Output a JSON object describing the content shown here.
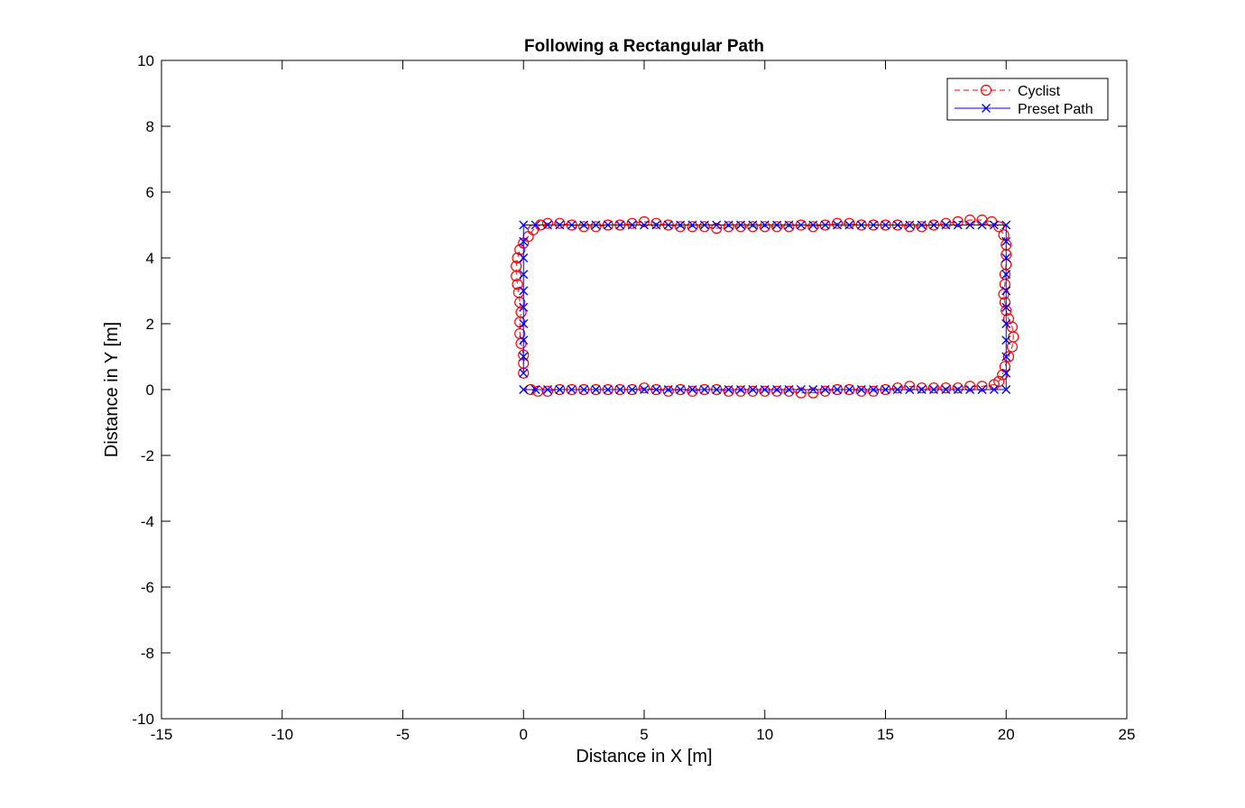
{
  "chart_data": {
    "type": "line",
    "title": "Following a Rectangular Path",
    "xlabel": "Distance in X [m]",
    "ylabel": "Distance in Y [m]",
    "xlim": [
      -15,
      25
    ],
    "ylim": [
      -10,
      10
    ],
    "xticks": [
      -15,
      -10,
      -5,
      0,
      5,
      10,
      15,
      20,
      25
    ],
    "yticks": [
      -10,
      -8,
      -6,
      -4,
      -2,
      0,
      2,
      4,
      6,
      8,
      10
    ],
    "grid": false,
    "legend_position": "top-right",
    "series": [
      {
        "name": "Cyclist",
        "color": "#ff0000",
        "line_style": "dashed",
        "marker": "circle",
        "points": [
          [
            0.0,
            0.5
          ],
          [
            0.0,
            0.8
          ],
          [
            0.0,
            1.05
          ],
          [
            -0.1,
            1.4
          ],
          [
            -0.15,
            1.7
          ],
          [
            -0.15,
            2.05
          ],
          [
            -0.1,
            2.35
          ],
          [
            -0.15,
            2.65
          ],
          [
            -0.2,
            2.95
          ],
          [
            -0.25,
            3.2
          ],
          [
            -0.3,
            3.45
          ],
          [
            -0.3,
            3.75
          ],
          [
            -0.25,
            4.0
          ],
          [
            -0.15,
            4.25
          ],
          [
            0.0,
            4.45
          ],
          [
            0.2,
            4.65
          ],
          [
            0.4,
            4.85
          ],
          [
            0.7,
            5.0
          ],
          [
            1.0,
            5.05
          ],
          [
            1.5,
            5.05
          ],
          [
            2.0,
            5.0
          ],
          [
            2.5,
            4.95
          ],
          [
            3.0,
            4.95
          ],
          [
            3.5,
            5.0
          ],
          [
            4.0,
            5.0
          ],
          [
            4.5,
            5.05
          ],
          [
            5.0,
            5.1
          ],
          [
            5.5,
            5.05
          ],
          [
            6.0,
            5.0
          ],
          [
            6.5,
            4.95
          ],
          [
            7.0,
            4.95
          ],
          [
            7.5,
            4.95
          ],
          [
            8.0,
            4.9
          ],
          [
            8.5,
            4.95
          ],
          [
            9.0,
            4.95
          ],
          [
            9.5,
            4.95
          ],
          [
            10.0,
            4.95
          ],
          [
            10.5,
            4.95
          ],
          [
            11.0,
            4.95
          ],
          [
            11.5,
            5.0
          ],
          [
            12.0,
            4.95
          ],
          [
            12.5,
            5.0
          ],
          [
            13.0,
            5.05
          ],
          [
            13.5,
            5.05
          ],
          [
            14.0,
            5.0
          ],
          [
            14.5,
            5.0
          ],
          [
            15.0,
            5.0
          ],
          [
            15.5,
            5.0
          ],
          [
            16.0,
            4.95
          ],
          [
            16.5,
            4.95
          ],
          [
            17.0,
            5.0
          ],
          [
            17.5,
            5.05
          ],
          [
            18.0,
            5.1
          ],
          [
            18.5,
            5.15
          ],
          [
            19.0,
            5.15
          ],
          [
            19.4,
            5.1
          ],
          [
            19.7,
            4.95
          ],
          [
            19.9,
            4.7
          ],
          [
            20.0,
            4.4
          ],
          [
            20.0,
            4.1
          ],
          [
            20.0,
            3.8
          ],
          [
            19.95,
            3.5
          ],
          [
            19.95,
            3.2
          ],
          [
            19.9,
            2.9
          ],
          [
            19.95,
            2.65
          ],
          [
            20.0,
            2.4
          ],
          [
            20.1,
            2.15
          ],
          [
            20.25,
            1.9
          ],
          [
            20.3,
            1.6
          ],
          [
            20.25,
            1.3
          ],
          [
            20.1,
            1.0
          ],
          [
            19.95,
            0.7
          ],
          [
            19.85,
            0.45
          ],
          [
            19.7,
            0.25
          ],
          [
            19.5,
            0.15
          ],
          [
            19.0,
            0.1
          ],
          [
            18.5,
            0.1
          ],
          [
            18.0,
            0.05
          ],
          [
            17.5,
            0.05
          ],
          [
            17.0,
            0.05
          ],
          [
            16.5,
            0.05
          ],
          [
            16.0,
            0.1
          ],
          [
            15.5,
            0.05
          ],
          [
            15.0,
            0.0
          ],
          [
            14.5,
            -0.05
          ],
          [
            14.0,
            -0.05
          ],
          [
            13.5,
            0.0
          ],
          [
            13.0,
            0.0
          ],
          [
            12.5,
            -0.05
          ],
          [
            12.0,
            -0.1
          ],
          [
            11.5,
            -0.1
          ],
          [
            11.0,
            -0.05
          ],
          [
            10.5,
            -0.05
          ],
          [
            10.0,
            -0.05
          ],
          [
            9.5,
            -0.05
          ],
          [
            9.0,
            -0.05
          ],
          [
            8.5,
            -0.05
          ],
          [
            8.0,
            0.0
          ],
          [
            7.5,
            0.0
          ],
          [
            7.0,
            -0.05
          ],
          [
            6.5,
            0.0
          ],
          [
            6.0,
            -0.05
          ],
          [
            5.5,
            0.0
          ],
          [
            5.0,
            0.05
          ],
          [
            4.5,
            0.0
          ],
          [
            4.0,
            0.0
          ],
          [
            3.5,
            0.0
          ],
          [
            3.0,
            0.0
          ],
          [
            2.5,
            0.0
          ],
          [
            2.0,
            0.0
          ],
          [
            1.5,
            0.0
          ],
          [
            1.0,
            -0.05
          ],
          [
            0.6,
            -0.05
          ],
          [
            0.3,
            0.0
          ]
        ]
      },
      {
        "name": "Preset Path",
        "color": "#0000ff",
        "line_style": "solid",
        "marker": "x",
        "points": [
          [
            0,
            0
          ],
          [
            0.5,
            0
          ],
          [
            1,
            0
          ],
          [
            1.5,
            0
          ],
          [
            2,
            0
          ],
          [
            2.5,
            0
          ],
          [
            3,
            0
          ],
          [
            3.5,
            0
          ],
          [
            4,
            0
          ],
          [
            4.5,
            0
          ],
          [
            5,
            0
          ],
          [
            5.5,
            0
          ],
          [
            6,
            0
          ],
          [
            6.5,
            0
          ],
          [
            7,
            0
          ],
          [
            7.5,
            0
          ],
          [
            8,
            0
          ],
          [
            8.5,
            0
          ],
          [
            9,
            0
          ],
          [
            9.5,
            0
          ],
          [
            10,
            0
          ],
          [
            10.5,
            0
          ],
          [
            11,
            0
          ],
          [
            11.5,
            0
          ],
          [
            12,
            0
          ],
          [
            12.5,
            0
          ],
          [
            13,
            0
          ],
          [
            13.5,
            0
          ],
          [
            14,
            0
          ],
          [
            14.5,
            0
          ],
          [
            15,
            0
          ],
          [
            15.5,
            0
          ],
          [
            16,
            0
          ],
          [
            16.5,
            0
          ],
          [
            17,
            0
          ],
          [
            17.5,
            0
          ],
          [
            18,
            0
          ],
          [
            18.5,
            0
          ],
          [
            19,
            0
          ],
          [
            19.5,
            0
          ],
          [
            20,
            0
          ],
          [
            20,
            0.5
          ],
          [
            20,
            1
          ],
          [
            20,
            1.5
          ],
          [
            20,
            2
          ],
          [
            20,
            2.5
          ],
          [
            20,
            3
          ],
          [
            20,
            3.5
          ],
          [
            20,
            4
          ],
          [
            20,
            4.5
          ],
          [
            20,
            5
          ],
          [
            19.5,
            5
          ],
          [
            19,
            5
          ],
          [
            18.5,
            5
          ],
          [
            18,
            5
          ],
          [
            17.5,
            5
          ],
          [
            17,
            5
          ],
          [
            16.5,
            5
          ],
          [
            16,
            5
          ],
          [
            15.5,
            5
          ],
          [
            15,
            5
          ],
          [
            14.5,
            5
          ],
          [
            14,
            5
          ],
          [
            13.5,
            5
          ],
          [
            13,
            5
          ],
          [
            12.5,
            5
          ],
          [
            12,
            5
          ],
          [
            11.5,
            5
          ],
          [
            11,
            5
          ],
          [
            10.5,
            5
          ],
          [
            10,
            5
          ],
          [
            9.5,
            5
          ],
          [
            9,
            5
          ],
          [
            8.5,
            5
          ],
          [
            8,
            5
          ],
          [
            7.5,
            5
          ],
          [
            7,
            5
          ],
          [
            6.5,
            5
          ],
          [
            6,
            5
          ],
          [
            5.5,
            5
          ],
          [
            5,
            5
          ],
          [
            4.5,
            5
          ],
          [
            4,
            5
          ],
          [
            3.5,
            5
          ],
          [
            3,
            5
          ],
          [
            2.5,
            5
          ],
          [
            2,
            5
          ],
          [
            1.5,
            5
          ],
          [
            1,
            5
          ],
          [
            0.5,
            5
          ],
          [
            0,
            5
          ],
          [
            0,
            4.5
          ],
          [
            0,
            4
          ],
          [
            0,
            3.5
          ],
          [
            0,
            3
          ],
          [
            0,
            2.5
          ],
          [
            0,
            2
          ],
          [
            0,
            1.5
          ],
          [
            0,
            1
          ],
          [
            0,
            0.5
          ]
        ]
      }
    ]
  }
}
